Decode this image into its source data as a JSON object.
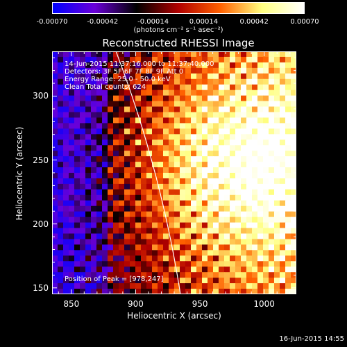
{
  "colorbar": {
    "ticks": [
      "-0.00070",
      "-0.00042",
      "-0.00014",
      "0.00014",
      "0.00042",
      "0.00070"
    ],
    "tick_values": [
      -0.0007,
      -0.00042,
      -0.00014,
      0.00014,
      0.00042,
      0.0007
    ],
    "range": [
      -0.0007,
      0.0007
    ],
    "units": "(photons cm⁻² s⁻¹ asec⁻²)",
    "colors": [
      "#0000ff",
      "#6a00d8",
      "#000000",
      "#b00000",
      "#ff6000",
      "#ffff80",
      "#ffffff"
    ]
  },
  "chart_data": {
    "type": "heatmap",
    "title": "Reconstructed RHESSI Image",
    "xlabel": "Heliocentric X (arcsec)",
    "ylabel": "Heliocentric Y (arcsec)",
    "xlim": [
      835,
      1025
    ],
    "ylim": [
      145,
      335
    ],
    "x_ticks": [
      "850",
      "900",
      "950",
      "1000"
    ],
    "x_tick_values": [
      850,
      900,
      950,
      1000
    ],
    "y_ticks": [
      "150",
      "200",
      "250",
      "300"
    ],
    "y_tick_values": [
      150,
      200,
      250,
      300
    ],
    "annotations": [
      "14-Jun-2015 11:37:16.000 to 11:37:40.000",
      "Detectors: 3F 5F 6F 7F 8F 9F  Att 0",
      "Energy Range: 25.0 - 50.0 keV",
      "Clean    Total counts: 624"
    ],
    "peak_label": "Position of Peak = [978,247]",
    "peak_position": [
      978,
      247
    ],
    "limb": {
      "center": [
        0,
        0
      ],
      "radius": 946
    },
    "limb_color": "#ffffff"
  },
  "footer": {
    "timestamp": "16-Jun-2015 14:55"
  }
}
